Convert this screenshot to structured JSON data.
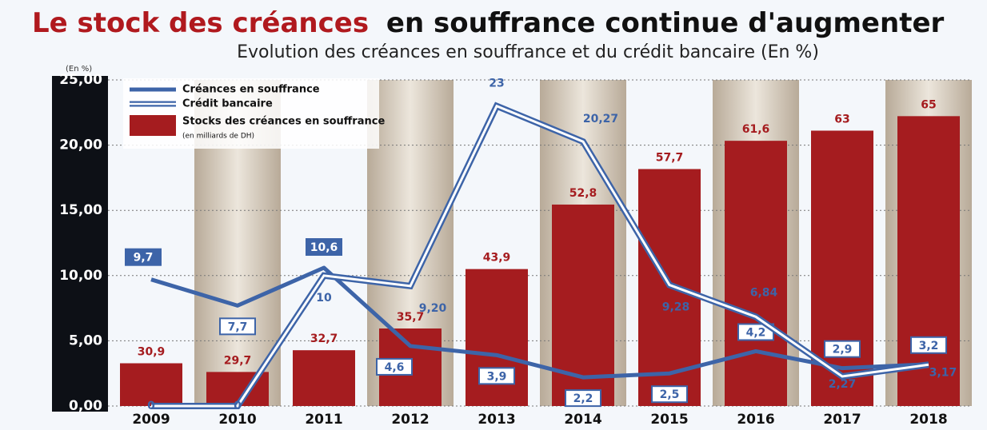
{
  "chart_data": {
    "type": "bar-line",
    "title": "Le stock des créances",
    "title_rest": "en souffrance continue d'augmenter",
    "subtitle": "Evolution des créances en souffrance et du crédit bancaire (En %)",
    "y_unit": "(En %)",
    "categories": [
      "2009",
      "2010",
      "2011",
      "2012",
      "2013",
      "2014",
      "2015",
      "2016",
      "2017",
      "2018"
    ],
    "ylim": [
      0,
      25
    ],
    "yticks": [
      {
        "value": 0,
        "label": "0,00"
      },
      {
        "value": 5,
        "label": "5,00"
      },
      {
        "value": 10,
        "label": "10,00"
      },
      {
        "value": 15,
        "label": "15,00"
      },
      {
        "value": 20,
        "label": "20,00"
      },
      {
        "value": 25,
        "label": "25,00"
      }
    ],
    "y2lim": [
      25,
      70
    ],
    "grid": true,
    "series": [
      {
        "name": "Créances en souffrance",
        "type": "line",
        "color": "#3d64a8",
        "values": [
          9.7,
          7.7,
          10.6,
          4.6,
          3.9,
          2.2,
          2.5,
          4.2,
          2.9,
          3.2
        ],
        "value_labels": [
          "9,7",
          "7,7",
          "10,6",
          "4,6",
          "3,9",
          "2,2",
          "2,5",
          "4,2",
          "2,9",
          "3,2"
        ]
      },
      {
        "name": "Crédit bancaire",
        "type": "double-line",
        "color": "#3d64a8",
        "values": [
          0,
          0,
          10,
          9.2,
          23,
          20.27,
          9.28,
          6.84,
          2.27,
          3.17
        ],
        "value_labels": [
          "0",
          "0",
          "10",
          "9,20",
          "23",
          "20,27",
          "9,28",
          "6,84",
          "2,27",
          "3,17"
        ]
      },
      {
        "name": "Stocks des créances en souffrance",
        "unit": "(en milliards de DH)",
        "type": "bar",
        "axis": "y2",
        "color": "#a51c1f",
        "values": [
          30.9,
          29.7,
          32.7,
          35.7,
          43.9,
          52.8,
          57.7,
          61.6,
          63,
          65
        ],
        "value_labels": [
          "30,9",
          "29,7",
          "32,7",
          "35,7",
          "43,9",
          "52,8",
          "57,7",
          "61,6",
          "63",
          "65"
        ]
      }
    ]
  }
}
